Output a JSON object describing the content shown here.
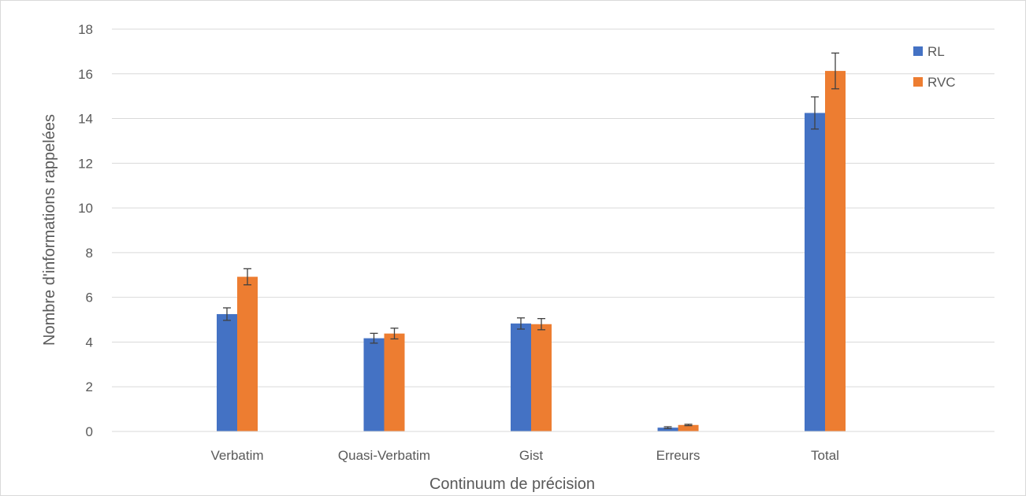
{
  "chart_data": {
    "type": "bar",
    "title": "",
    "xlabel": "Continuum de précision",
    "ylabel": "Nombre d'informations rappelées",
    "categories": [
      "Verbatim",
      "Quasi-Verbatim",
      "Gist",
      "Erreurs",
      "Total"
    ],
    "series": [
      {
        "name": "RL",
        "color": "#4472c4",
        "values": [
          5.25,
          4.17,
          4.83,
          0.17,
          14.25
        ],
        "errors": [
          0.28,
          0.22,
          0.25,
          0.04,
          0.72
        ]
      },
      {
        "name": "RVC",
        "color": "#ed7d31",
        "values": [
          6.92,
          4.38,
          4.8,
          0.29,
          16.13
        ],
        "errors": [
          0.36,
          0.24,
          0.25,
          0.03,
          0.8
        ]
      }
    ],
    "ylim": [
      0,
      18
    ],
    "yticks": [
      "0",
      "2",
      "4",
      "6",
      "8",
      "10",
      "12",
      "14",
      "16",
      "18"
    ],
    "grid": true,
    "legend": "top-right"
  }
}
